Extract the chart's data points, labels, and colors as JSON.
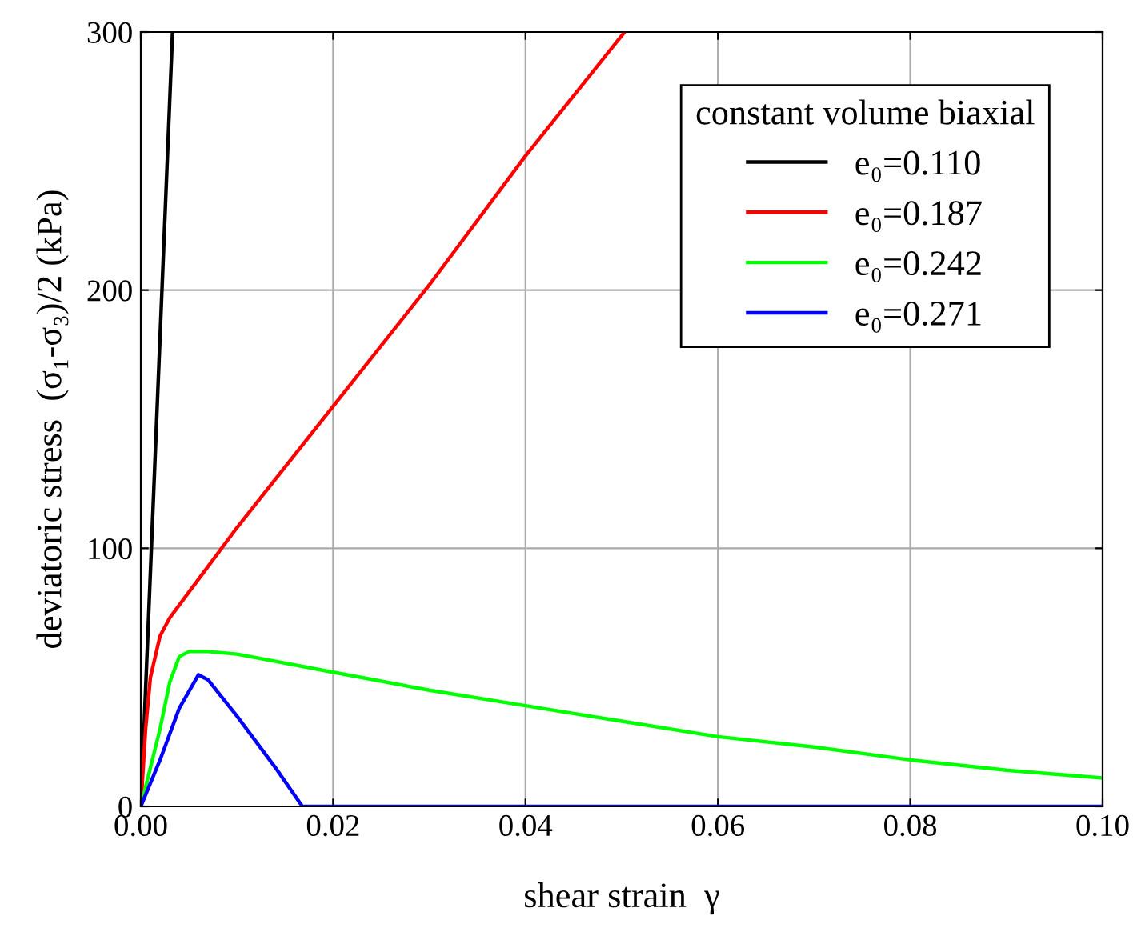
{
  "chart_data": {
    "type": "line",
    "xlabel": "shear strain  γ",
    "ylabel": "deviatoric stress  (σ₁-σ₃)/2 (kPa)",
    "legend_title": "constant volume biaxial",
    "xlim": [
      0,
      0.1
    ],
    "ylim": [
      0,
      300
    ],
    "xticks": [
      {
        "value": 0,
        "label": "0.00"
      },
      {
        "value": 0.02,
        "label": "0.02"
      },
      {
        "value": 0.04,
        "label": "0.04"
      },
      {
        "value": 0.06,
        "label": "0.06"
      },
      {
        "value": 0.08,
        "label": "0.08"
      },
      {
        "value": 0.1,
        "label": "0.10"
      }
    ],
    "yticks": [
      0,
      100,
      200,
      300
    ],
    "grid": true,
    "legend": "top right",
    "series": [
      {
        "name": "e₀=0.110",
        "color": "#000000",
        "x": [
          0,
          0.0033
        ],
        "values": [
          0,
          300
        ]
      },
      {
        "name": "e₀=0.187",
        "color": "#ff0000",
        "x": [
          0,
          0.0005,
          0.001,
          0.002,
          0.003,
          0.005,
          0.01,
          0.02,
          0.03,
          0.04,
          0.0503
        ],
        "values": [
          0,
          30,
          50,
          66,
          73,
          83,
          108,
          155,
          202,
          252,
          300
        ]
      },
      {
        "name": "e₀=0.242",
        "color": "#00ff00",
        "x": [
          0,
          0.002,
          0.003,
          0.004,
          0.005,
          0.007,
          0.01,
          0.02,
          0.03,
          0.04,
          0.05,
          0.06,
          0.07,
          0.08,
          0.09,
          0.1
        ],
        "values": [
          0,
          30,
          48,
          58,
          60,
          60,
          59,
          52,
          45,
          39,
          33,
          27,
          23,
          18,
          14,
          11
        ]
      },
      {
        "name": "e₀=0.271",
        "color": "#0000ff",
        "x": [
          0,
          0.002,
          0.004,
          0.006,
          0.007,
          0.01,
          0.014,
          0.0168,
          0.1
        ],
        "values": [
          0,
          18,
          38,
          51,
          49,
          35,
          15,
          0,
          0
        ]
      }
    ]
  }
}
